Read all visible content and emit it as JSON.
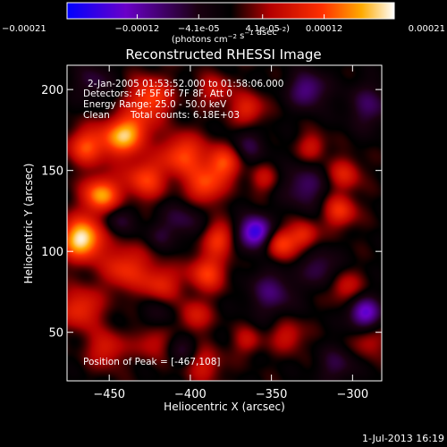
{
  "chart_data": {
    "type": "heatmap",
    "title": "Reconstructed RHESSI Image",
    "xlabel": "Heliocentric X (arcsec)",
    "ylabel": "Heliocentric Y (arcsec)",
    "xlim": [
      -476,
      -282
    ],
    "ylim": [
      20,
      215
    ],
    "xticks": [
      -450,
      -400,
      -350,
      -300
    ],
    "yticks": [
      50,
      100,
      150,
      200
    ],
    "colorbar": {
      "range": [
        -0.00021,
        0.00021
      ],
      "ticks": [
        "-0.00021",
        "-0.00012",
        "-4.1e-05",
        "4.1e-05",
        "0.00012",
        "0.00021"
      ],
      "tick_values": [
        -0.00021,
        -0.00012,
        -4.1e-05,
        4.1e-05,
        0.00012,
        0.00021
      ],
      "label": "(photons cm^-2 s^-1 asec^-2)",
      "colors": [
        "#0000ff",
        "#6a00c8",
        "#1a0010",
        "#000000",
        "#b40000",
        "#ff3000",
        "#ffaa00",
        "#ffffff"
      ]
    },
    "annotations": {
      "time_range": "2-Jan-2005 01:53:52.000 to 01:58:06.000",
      "detectors": "Detectors: 4F 5F 6F 7F 8F, Att 0",
      "energy": "Energy Range: 25.0 - 50.0 keV",
      "clean": "Clean",
      "counts": "Total counts: 6.18E+03",
      "peak": "Position of Peak = [-467,108]"
    },
    "peak_position": [
      -467,
      108
    ],
    "sources": [
      {
        "x": -467,
        "y": 108,
        "v": 1.0,
        "s": 9
      },
      {
        "x": -455,
        "y": 135,
        "v": 0.8,
        "s": 8
      },
      {
        "x": -445,
        "y": 170,
        "v": 0.6,
        "s": 9
      },
      {
        "x": -465,
        "y": 165,
        "v": 0.55,
        "s": 8
      },
      {
        "x": -425,
        "y": 195,
        "v": 0.6,
        "s": 9
      },
      {
        "x": -428,
        "y": 145,
        "v": 0.55,
        "s": 9
      },
      {
        "x": -405,
        "y": 160,
        "v": 0.6,
        "s": 9
      },
      {
        "x": -380,
        "y": 155,
        "v": 0.6,
        "s": 8
      },
      {
        "x": -392,
        "y": 140,
        "v": 0.55,
        "s": 8
      },
      {
        "x": -440,
        "y": 90,
        "v": 0.5,
        "s": 10
      },
      {
        "x": -418,
        "y": 80,
        "v": 0.45,
        "s": 8
      },
      {
        "x": -390,
        "y": 87,
        "v": 0.55,
        "s": 8
      },
      {
        "x": -383,
        "y": 108,
        "v": 0.5,
        "s": 7
      },
      {
        "x": -468,
        "y": 65,
        "v": 0.5,
        "s": 9
      },
      {
        "x": -452,
        "y": 40,
        "v": 0.4,
        "s": 8
      },
      {
        "x": -423,
        "y": 45,
        "v": 0.35,
        "s": 8
      },
      {
        "x": -398,
        "y": 60,
        "v": 0.4,
        "s": 7
      },
      {
        "x": -392,
        "y": 30,
        "v": 0.35,
        "s": 8
      },
      {
        "x": -345,
        "y": 105,
        "v": 0.55,
        "s": 7
      },
      {
        "x": -330,
        "y": 110,
        "v": 0.45,
        "s": 6
      },
      {
        "x": -308,
        "y": 125,
        "v": 0.5,
        "s": 7
      },
      {
        "x": -305,
        "y": 148,
        "v": 0.4,
        "s": 7
      },
      {
        "x": -325,
        "y": 165,
        "v": 0.35,
        "s": 6
      },
      {
        "x": -355,
        "y": 145,
        "v": 0.3,
        "s": 6
      },
      {
        "x": -365,
        "y": 188,
        "v": 0.45,
        "s": 7
      },
      {
        "x": -385,
        "y": 200,
        "v": 0.35,
        "s": 7
      },
      {
        "x": -340,
        "y": 48,
        "v": 0.35,
        "s": 7
      },
      {
        "x": -305,
        "y": 78,
        "v": 0.35,
        "s": 7
      },
      {
        "x": -290,
        "y": 45,
        "v": 0.3,
        "s": 7
      },
      {
        "x": -365,
        "y": 45,
        "v": 0.3,
        "s": 6
      },
      {
        "x": -435,
        "y": 175,
        "v": 0.45,
        "s": 8
      },
      {
        "x": -360,
        "y": 112,
        "v": -0.9,
        "s": 7
      },
      {
        "x": -293,
        "y": 62,
        "v": -0.7,
        "s": 7
      },
      {
        "x": -328,
        "y": 200,
        "v": -0.5,
        "s": 8
      },
      {
        "x": -350,
        "y": 75,
        "v": -0.4,
        "s": 10
      },
      {
        "x": -330,
        "y": 140,
        "v": -0.4,
        "s": 9
      },
      {
        "x": -320,
        "y": 90,
        "v": -0.35,
        "s": 8
      },
      {
        "x": -405,
        "y": 120,
        "v": -0.3,
        "s": 9
      },
      {
        "x": -365,
        "y": 165,
        "v": -0.3,
        "s": 8
      },
      {
        "x": -460,
        "y": 205,
        "v": -0.3,
        "s": 8
      },
      {
        "x": -420,
        "y": 60,
        "v": -0.2,
        "s": 9
      },
      {
        "x": -290,
        "y": 190,
        "v": -0.35,
        "s": 10
      },
      {
        "x": -310,
        "y": 30,
        "v": -0.3,
        "s": 8
      },
      {
        "x": -405,
        "y": 40,
        "v": -0.25,
        "s": 7
      },
      {
        "x": -445,
        "y": 120,
        "v": -0.3,
        "s": 7
      },
      {
        "x": -420,
        "y": 110,
        "v": -0.2,
        "s": 6
      }
    ]
  },
  "footer": {
    "date": "1-Jul-2013 16:19"
  }
}
